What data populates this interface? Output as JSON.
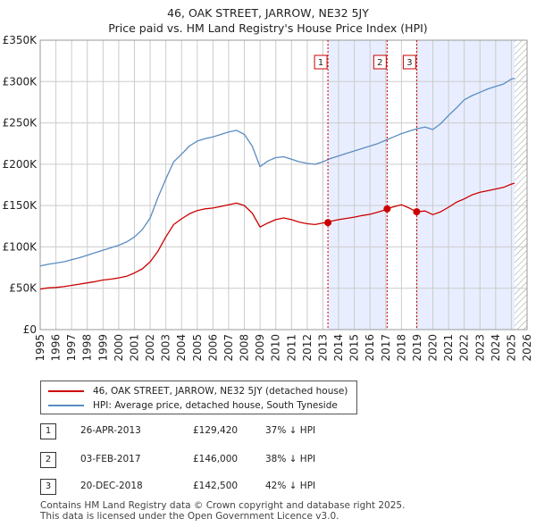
{
  "title": {
    "line1": "46, OAK STREET, JARROW, NE32 5JY",
    "line2": "Price paid vs. HM Land Registry's House Price Index (HPI)"
  },
  "colors": {
    "red": "#cc0000",
    "blue": "#5b8cc2",
    "shade": "#e8eeff",
    "grid": "#cccccc"
  },
  "chart_data": {
    "type": "line",
    "title": "Price paid vs. HM Land Registry's House Price Index (HPI)",
    "xlim": [
      1995,
      2026
    ],
    "ylim": [
      0,
      350000
    ],
    "y_ticks": [
      0,
      50000,
      100000,
      150000,
      200000,
      250000,
      300000,
      350000
    ],
    "y_tick_labels": [
      "£0",
      "£50K",
      "£100K",
      "£150K",
      "£200K",
      "£250K",
      "£300K",
      "£350K"
    ],
    "x_ticks": [
      1995,
      1996,
      1997,
      1998,
      1999,
      2000,
      2001,
      2002,
      2003,
      2004,
      2005,
      2006,
      2007,
      2008,
      2009,
      2010,
      2011,
      2012,
      2013,
      2014,
      2015,
      2016,
      2017,
      2018,
      2019,
      2020,
      2021,
      2022,
      2023,
      2024,
      2025,
      2026
    ],
    "x_tick_labels": [
      "1995",
      "1996",
      "1997",
      "1998",
      "1999",
      "2000",
      "2001",
      "2002",
      "2003",
      "2004",
      "2005",
      "2006",
      "2007",
      "2008",
      "2009",
      "2010",
      "2011",
      "2012",
      "2013",
      "2014",
      "2015",
      "2016",
      "2017",
      "2018",
      "2019",
      "2020",
      "2021",
      "2022",
      "2023",
      "2024",
      "2025",
      "2026"
    ],
    "shaded_ranges": [
      [
        2013.32,
        2017.09
      ],
      [
        2018.97,
        2025.2
      ]
    ],
    "hatch_from": 2025.2,
    "series": [
      {
        "name": "46, OAK STREET, JARROW, NE32 5JY (detached house)",
        "color": "#cc0000",
        "x": [
          1995.0,
          1995.5,
          1996.0,
          1996.5,
          1997.0,
          1997.5,
          1998.0,
          1998.5,
          1999.0,
          1999.5,
          2000.0,
          2000.5,
          2001.0,
          2001.5,
          2002.0,
          2002.5,
          2003.0,
          2003.5,
          2004.0,
          2004.5,
          2005.0,
          2005.5,
          2006.0,
          2006.5,
          2007.0,
          2007.5,
          2008.0,
          2008.5,
          2009.0,
          2009.5,
          2010.0,
          2010.5,
          2011.0,
          2011.5,
          2012.0,
          2012.5,
          2013.0,
          2013.32,
          2013.5,
          2014.0,
          2014.5,
          2015.0,
          2015.5,
          2016.0,
          2016.5,
          2017.0,
          2017.09,
          2017.5,
          2018.0,
          2018.5,
          2018.97,
          2019.5,
          2020.0,
          2020.5,
          2021.0,
          2021.5,
          2022.0,
          2022.5,
          2023.0,
          2023.5,
          2024.0,
          2024.5,
          2025.0,
          2025.2
        ],
        "values": [
          49000,
          50500,
          51000,
          52000,
          53500,
          55000,
          56500,
          58000,
          60000,
          61000,
          62500,
          64500,
          68500,
          73500,
          82000,
          95000,
          112000,
          127000,
          134000,
          140000,
          144000,
          146000,
          147000,
          149000,
          151000,
          153000,
          150000,
          141000,
          124000,
          129000,
          133000,
          135000,
          133000,
          130000,
          128000,
          127000,
          129000,
          129420,
          131000,
          133000,
          134500,
          136000,
          138000,
          139500,
          142000,
          145000,
          146000,
          148500,
          151000,
          147000,
          142500,
          143500,
          139000,
          142500,
          148000,
          154000,
          158000,
          163000,
          166000,
          168000,
          170000,
          172000,
          176000,
          177000
        ]
      },
      {
        "name": "HPI: Average price, detached house, South Tyneside",
        "color": "#5b8cc2",
        "x": [
          1995.0,
          1995.5,
          1996.0,
          1996.5,
          1997.0,
          1997.5,
          1998.0,
          1998.5,
          1999.0,
          1999.5,
          2000.0,
          2000.5,
          2001.0,
          2001.5,
          2002.0,
          2002.5,
          2003.0,
          2003.5,
          2004.0,
          2004.5,
          2005.0,
          2005.5,
          2006.0,
          2006.5,
          2007.0,
          2007.5,
          2008.0,
          2008.5,
          2009.0,
          2009.5,
          2010.0,
          2010.5,
          2011.0,
          2011.5,
          2012.0,
          2012.5,
          2013.0,
          2013.5,
          2014.0,
          2014.5,
          2015.0,
          2015.5,
          2016.0,
          2016.5,
          2017.0,
          2017.5,
          2018.0,
          2018.5,
          2019.0,
          2019.5,
          2020.0,
          2020.5,
          2021.0,
          2021.5,
          2022.0,
          2022.5,
          2023.0,
          2023.5,
          2024.0,
          2024.5,
          2025.0,
          2025.2
        ],
        "values": [
          77000,
          79000,
          80500,
          82000,
          84500,
          87000,
          90000,
          93000,
          96000,
          99000,
          102000,
          106000,
          112000,
          121000,
          135000,
          160000,
          182000,
          203000,
          212000,
          222000,
          228000,
          231000,
          233000,
          236000,
          239000,
          241000,
          236000,
          222000,
          197000,
          204000,
          208000,
          209000,
          206000,
          203000,
          201000,
          200000,
          203000,
          207000,
          210000,
          213000,
          216000,
          219000,
          222000,
          225000,
          229000,
          233000,
          237000,
          240000,
          243000,
          245000,
          242000,
          249000,
          259000,
          268000,
          278000,
          283000,
          287000,
          291000,
          294000,
          297000,
          303000,
          304000
        ]
      }
    ],
    "annotations": [
      {
        "label": "1",
        "x": 2013.32,
        "price": 129420
      },
      {
        "label": "2",
        "x": 2017.09,
        "price": 146000
      },
      {
        "label": "3",
        "x": 2018.97,
        "price": 142500
      }
    ]
  },
  "legend": {
    "property": "46, OAK STREET, JARROW, NE32 5JY (detached house)",
    "hpi": "HPI: Average price, detached house, South Tyneside"
  },
  "transactions": [
    {
      "num": "1",
      "date": "26-APR-2013",
      "price": "£129,420",
      "hpi": "37% ↓ HPI"
    },
    {
      "num": "2",
      "date": "03-FEB-2017",
      "price": "£146,000",
      "hpi": "38% ↓ HPI"
    },
    {
      "num": "3",
      "date": "20-DEC-2018",
      "price": "£142,500",
      "hpi": "42% ↓ HPI"
    }
  ],
  "footer": {
    "line1": "Contains HM Land Registry data © Crown copyright and database right 2025.",
    "line2": "This data is licensed under the Open Government Licence v3.0."
  }
}
